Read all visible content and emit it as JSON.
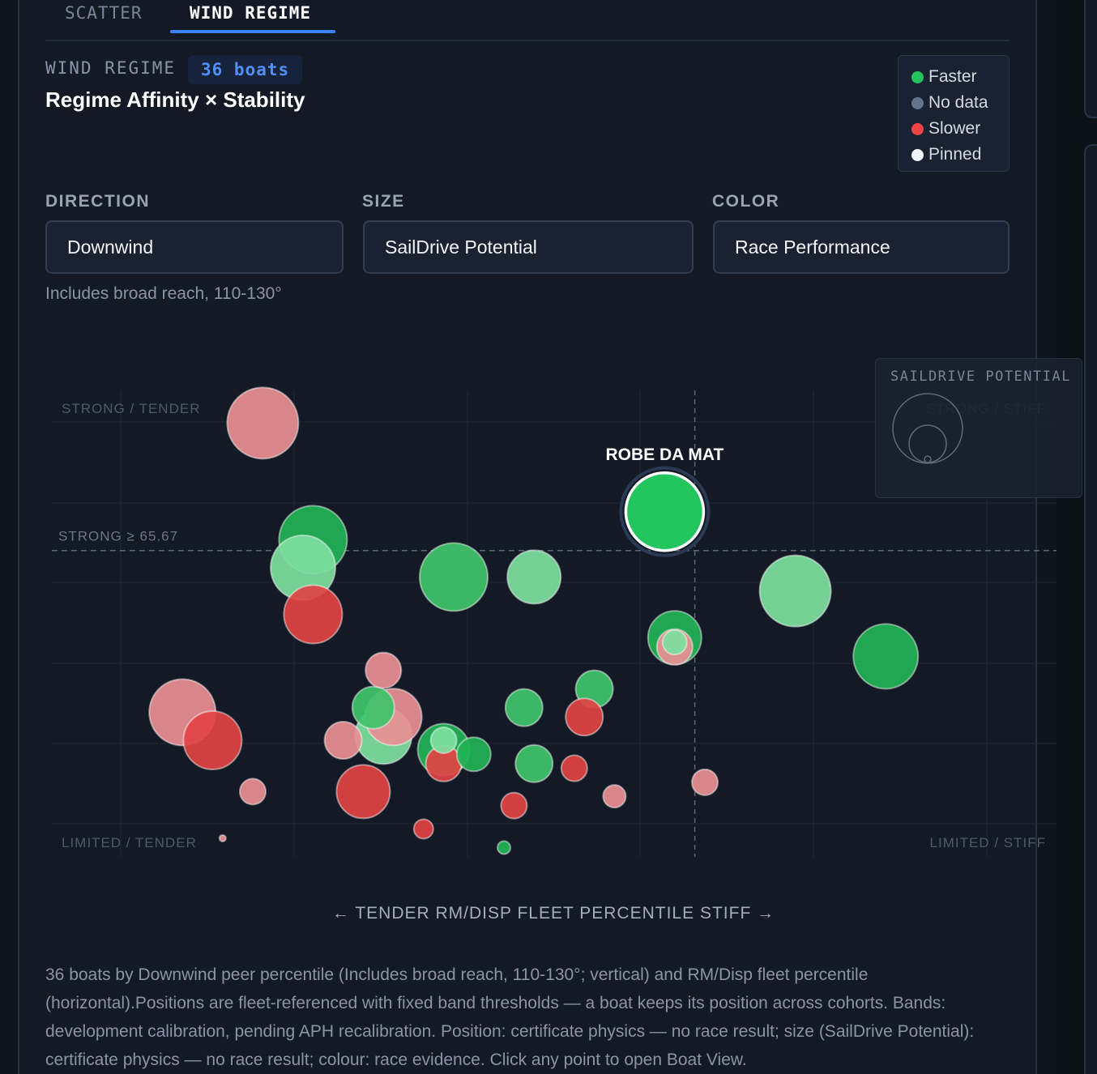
{
  "tabs": [
    {
      "label": "SCATTER",
      "active": false
    },
    {
      "label": "WIND REGIME",
      "active": true
    }
  ],
  "header": {
    "kicker": "WIND REGIME",
    "count_badge": "36 boats",
    "title": "Regime Affinity × Stability"
  },
  "legend": [
    {
      "label": "Faster",
      "color": "#22c55e"
    },
    {
      "label": "No data",
      "color": "#64748b"
    },
    {
      "label": "Slower",
      "color": "#ef4444"
    },
    {
      "label": "Pinned",
      "color": "#f1f5f9"
    }
  ],
  "controls": {
    "direction": {
      "label": "DIRECTION",
      "value": "Downwind",
      "hint": "Includes broad reach, 110-130°"
    },
    "size": {
      "label": "SIZE",
      "value": "SailDrive Potential"
    },
    "color": {
      "label": "COLOR",
      "value": "Race Performance"
    }
  },
  "size_legend": {
    "title": "SAILDRIVE POTENTIAL"
  },
  "chart_data": {
    "type": "scatter",
    "xlabel": "← TENDER RM/DISP FLEET PERCENTILE STIFF →",
    "xlim": [
      0,
      100
    ],
    "ylim": [
      0,
      100
    ],
    "grid": true,
    "threshold_y": {
      "value": 65.67,
      "label": "STRONG ≥ 65.67"
    },
    "threshold_x": 64,
    "quadrants": {
      "top_left": "STRONG / TENDER",
      "top_right": "STRONG / STIFF",
      "bottom_left": "LIMITED / TENDER",
      "bottom_right": "LIMITED / STIFF"
    },
    "pinned_label": "ROBE DA MAT",
    "points": [
      {
        "x": 21,
        "y": 93,
        "size": 88,
        "c": "slower-light"
      },
      {
        "x": 26,
        "y": 68,
        "size": 84,
        "c": "faster"
      },
      {
        "x": 26,
        "y": 52,
        "size": 72,
        "c": "slower"
      },
      {
        "x": 25,
        "y": 62,
        "size": 80,
        "c": "faster-light"
      },
      {
        "x": 40,
        "y": 60,
        "size": 84,
        "c": "faster-mid"
      },
      {
        "x": 48,
        "y": 60,
        "size": 66,
        "c": "faster-light"
      },
      {
        "x": 61,
        "y": 74,
        "size": 96,
        "c": "pinned",
        "label": "ROBE DA MAT"
      },
      {
        "x": 62,
        "y": 45,
        "size": 44,
        "c": "slower-light"
      },
      {
        "x": 62,
        "y": 47,
        "size": 66,
        "c": "faster"
      },
      {
        "x": 74,
        "y": 57,
        "size": 88,
        "c": "faster-light"
      },
      {
        "x": 83,
        "y": 43,
        "size": 80,
        "c": "faster"
      },
      {
        "x": 13,
        "y": 31,
        "size": 82,
        "c": "slower-light"
      },
      {
        "x": 16,
        "y": 25,
        "size": 72,
        "c": "slower"
      },
      {
        "x": 33,
        "y": 40,
        "size": 44,
        "c": "slower-light"
      },
      {
        "x": 32,
        "y": 32,
        "size": 52,
        "c": "faster-mid"
      },
      {
        "x": 33,
        "y": 26,
        "size": 70,
        "c": "faster-light"
      },
      {
        "x": 29,
        "y": 25,
        "size": 46,
        "c": "slower-light"
      },
      {
        "x": 34,
        "y": 30,
        "size": 70,
        "c": "slower-light"
      },
      {
        "x": 31,
        "y": 14,
        "size": 66,
        "c": "slower"
      },
      {
        "x": 20,
        "y": 14,
        "size": 32,
        "c": "slower-light"
      },
      {
        "x": 39,
        "y": 20,
        "size": 44,
        "c": "slower"
      },
      {
        "x": 42,
        "y": 22,
        "size": 42,
        "c": "faster"
      },
      {
        "x": 39,
        "y": 23,
        "size": 64,
        "c": "faster"
      },
      {
        "x": 39,
        "y": 25,
        "size": 32,
        "c": "faster-light"
      },
      {
        "x": 47,
        "y": 32,
        "size": 46,
        "c": "faster-mid"
      },
      {
        "x": 54,
        "y": 36,
        "size": 46,
        "c": "faster-mid"
      },
      {
        "x": 53,
        "y": 30,
        "size": 46,
        "c": "slower"
      },
      {
        "x": 48,
        "y": 20,
        "size": 46,
        "c": "faster-mid"
      },
      {
        "x": 52,
        "y": 19,
        "size": 32,
        "c": "slower"
      },
      {
        "x": 46,
        "y": 11,
        "size": 32,
        "c": "slower"
      },
      {
        "x": 56,
        "y": 13,
        "size": 28,
        "c": "slower-light"
      },
      {
        "x": 65,
        "y": 16,
        "size": 32,
        "c": "slower-light"
      },
      {
        "x": 37,
        "y": 6,
        "size": 24,
        "c": "slower"
      },
      {
        "x": 45,
        "y": 2,
        "size": 16,
        "c": "faster"
      },
      {
        "x": 17,
        "y": 4,
        "size": 8,
        "c": "slower-light"
      },
      {
        "x": 62,
        "y": 46,
        "size": 30,
        "c": "faster-light"
      }
    ]
  },
  "description": "36 boats by Downwind peer percentile (Includes broad reach, 110-130°; vertical) and RM/Disp fleet percentile (horizontal).Positions are fleet-referenced with fixed band thresholds — a boat keeps its position across cohorts. Bands: development calibration, pending APH recalibration. Position: certificate physics — no race result; size (SailDrive Potential): certificate physics — no race result; colour: race evidence. Click any point to open Boat View.",
  "colors": {
    "faster": "#22b356",
    "faster-mid": "#3fc46c",
    "faster-light": "#7ddf9e",
    "slower": "#e04444",
    "slower-light": "#e88f93",
    "pinned": "#22c55e",
    "accent": "#3b82f6"
  }
}
